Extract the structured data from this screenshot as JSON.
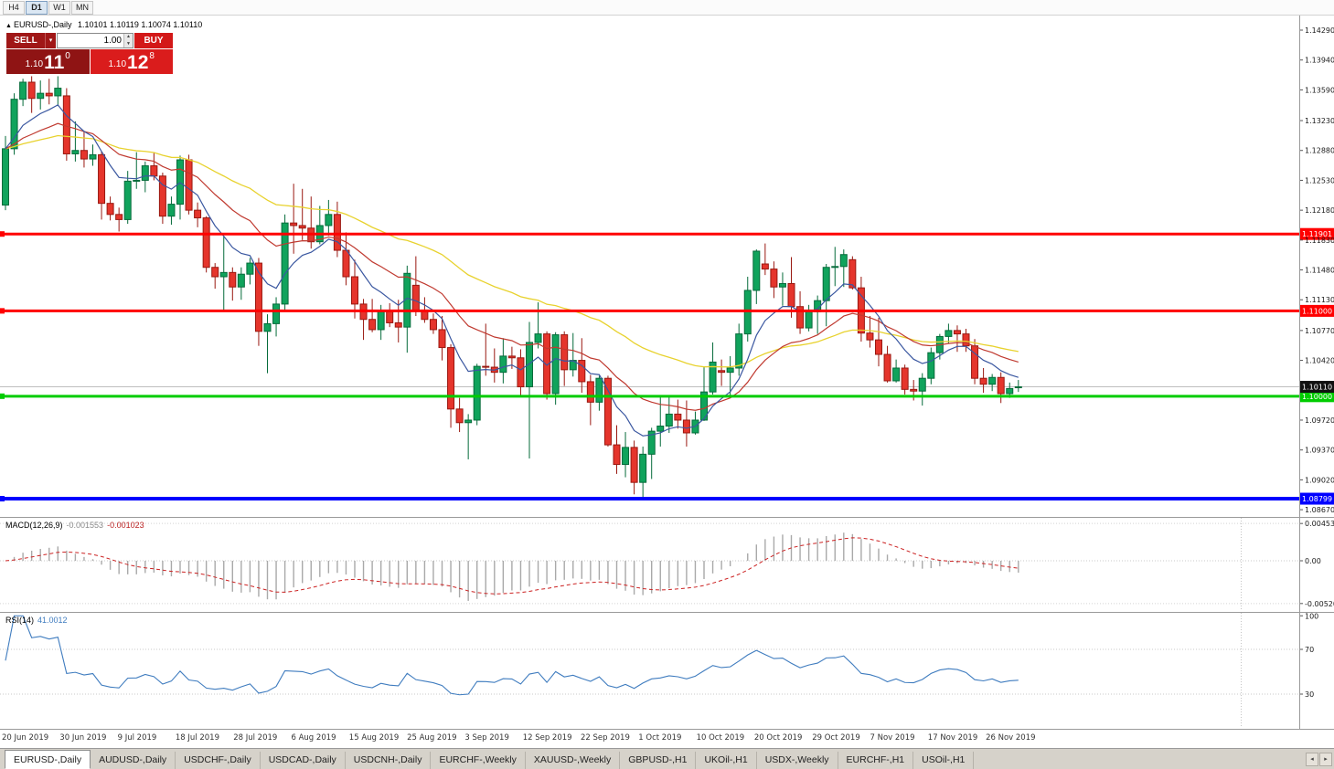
{
  "toolbar": {
    "timeframes": [
      {
        "label": "H4",
        "active": false
      },
      {
        "label": "D1",
        "active": true
      },
      {
        "label": "W1",
        "active": false
      },
      {
        "label": "MN",
        "active": false
      }
    ]
  },
  "chart_header": {
    "symbol": "EURUSD-,Daily",
    "ohlc": "1.10101 1.10119 1.10074 1.10110"
  },
  "trade_panel": {
    "sell_label": "SELL",
    "buy_label": "BUY",
    "volume": "1.00",
    "sell_price": {
      "prefix": "1.10",
      "big": "11",
      "sup": "0",
      "value": "1.10110"
    },
    "buy_price": {
      "prefix": "1.10",
      "big": "12",
      "sup": "8",
      "value": "1.10128"
    }
  },
  "icons": {
    "symbol_marker": "▲",
    "dropdown": "▾",
    "spin_up": "▲",
    "spin_down": "▼",
    "tab_scroll_left": "◂",
    "tab_scroll_right": "▸"
  },
  "price_axis": {
    "labels": [
      "1.14290",
      "1.13940",
      "1.13590",
      "1.13230",
      "1.12880",
      "1.12530",
      "1.12180",
      "1.11830",
      "1.11480",
      "1.11130",
      "1.10770",
      "1.10420",
      "1.09720",
      "1.09370",
      "1.09020",
      "1.08670"
    ]
  },
  "hlines": [
    {
      "price": 1.11901,
      "label": "1.11901",
      "color": "#ff0000",
      "width": 3
    },
    {
      "price": 1.11,
      "label": "1.11000",
      "color": "#ff0000",
      "width": 3
    },
    {
      "price": 1.1,
      "label": "1.10000",
      "color": "#00cc00",
      "width": 3
    },
    {
      "price": 1.08799,
      "label": "1.08799",
      "color": "#0000ff",
      "width": 4
    }
  ],
  "current_price": {
    "value": 1.1011,
    "label": "1.10110"
  },
  "indicators": {
    "macd": {
      "title": "MACD(12,26,9)",
      "value_main": "-0.001553",
      "value_signal": "-0.001023",
      "axis_labels": [
        "0.004536",
        "0.00",
        "-0.005203"
      ]
    },
    "rsi": {
      "title": "RSI(14)",
      "value": "41.0012",
      "axis_labels": [
        "100",
        "70",
        "30"
      ],
      "levels": [
        70,
        30
      ]
    }
  },
  "date_axis": {
    "labels": [
      "20 Jun 2019",
      "30 Jun 2019",
      "9 Jul 2019",
      "18 Jul 2019",
      "28 Jul 2019",
      "6 Aug 2019",
      "15 Aug 2019",
      "25 Aug 2019",
      "3 Sep 2019",
      "12 Sep 2019",
      "22 Sep 2019",
      "1 Oct 2019",
      "10 Oct 2019",
      "20 Oct 2019",
      "29 Oct 2019",
      "7 Nov 2019",
      "17 Nov 2019",
      "26 Nov 2019"
    ]
  },
  "tabs": {
    "items": [
      {
        "label": "EURUSD-,Daily",
        "active": true
      },
      {
        "label": "AUDUSD-,Daily",
        "active": false
      },
      {
        "label": "USDCHF-,Daily",
        "active": false
      },
      {
        "label": "USDCAD-,Daily",
        "active": false
      },
      {
        "label": "USDCNH-,Daily",
        "active": false
      },
      {
        "label": "EURCHF-,Weekly",
        "active": false
      },
      {
        "label": "XAUUSD-,Weekly",
        "active": false
      },
      {
        "label": "GBPUSD-,H1",
        "active": false
      },
      {
        "label": "UKOil-,H1",
        "active": false
      },
      {
        "label": "USDX-,Weekly",
        "active": false
      },
      {
        "label": "EURCHF-,H1",
        "active": false
      },
      {
        "label": "USOil-,H1",
        "active": false
      }
    ]
  },
  "colors": {
    "bull": "#10A35C",
    "bull_border": "#056B3A",
    "bear": "#E5352C",
    "bear_border": "#991810",
    "ma_fast": "#3A57A0",
    "ma_mid": "#C03A30",
    "ma_slow": "#E8D22E",
    "macd_hist": "#A9A9A9",
    "macd_signal": "#CC2222",
    "rsi_line": "#3F7CBF",
    "price_label_bg": "#111111"
  },
  "chart_data": {
    "type": "candlestick",
    "symbol": "EURUSD-",
    "timeframe": "Daily",
    "title": "EURUSD-,Daily",
    "ylim": [
      1.0867,
      1.1429
    ],
    "dates": [
      "2019.06.20",
      "2019.06.21",
      "2019.06.24",
      "2019.06.25",
      "2019.06.26",
      "2019.06.27",
      "2019.06.28",
      "2019.07.01",
      "2019.07.02",
      "2019.07.03",
      "2019.07.04",
      "2019.07.05",
      "2019.07.08",
      "2019.07.09",
      "2019.07.10",
      "2019.07.11",
      "2019.07.12",
      "2019.07.15",
      "2019.07.16",
      "2019.07.17",
      "2019.07.18",
      "2019.07.19",
      "2019.07.22",
      "2019.07.23",
      "2019.07.24",
      "2019.07.25",
      "2019.07.26",
      "2019.07.29",
      "2019.07.30",
      "2019.07.31",
      "2019.08.01",
      "2019.08.02",
      "2019.08.05",
      "2019.08.06",
      "2019.08.07",
      "2019.08.08",
      "2019.08.09",
      "2019.08.12",
      "2019.08.13",
      "2019.08.14",
      "2019.08.15",
      "2019.08.16",
      "2019.08.19",
      "2019.08.20",
      "2019.08.21",
      "2019.08.22",
      "2019.08.23",
      "2019.08.26",
      "2019.08.27",
      "2019.08.28",
      "2019.08.29",
      "2019.08.30",
      "2019.09.02",
      "2019.09.03",
      "2019.09.04",
      "2019.09.05",
      "2019.09.06",
      "2019.09.09",
      "2019.09.10",
      "2019.09.11",
      "2019.09.12",
      "2019.09.13",
      "2019.09.16",
      "2019.09.17",
      "2019.09.18",
      "2019.09.19",
      "2019.09.20",
      "2019.09.23",
      "2019.09.24",
      "2019.09.25",
      "2019.09.26",
      "2019.09.27",
      "2019.09.30",
      "2019.10.01",
      "2019.10.02",
      "2019.10.03",
      "2019.10.04",
      "2019.10.07",
      "2019.10.08",
      "2019.10.09",
      "2019.10.10",
      "2019.10.11",
      "2019.10.14",
      "2019.10.15",
      "2019.10.16",
      "2019.10.17",
      "2019.10.18",
      "2019.10.21",
      "2019.10.22",
      "2019.10.23",
      "2019.10.24",
      "2019.10.25",
      "2019.10.28",
      "2019.10.29",
      "2019.10.30",
      "2019.10.31",
      "2019.11.01",
      "2019.11.04",
      "2019.11.05",
      "2019.11.06",
      "2019.11.07",
      "2019.11.08",
      "2019.11.11",
      "2019.11.12",
      "2019.11.13",
      "2019.11.14",
      "2019.11.15",
      "2019.11.18",
      "2019.11.19",
      "2019.11.20",
      "2019.11.21",
      "2019.11.22",
      "2019.11.25",
      "2019.11.26",
      "2019.11.27",
      "2019.11.28",
      "2019.11.29"
    ],
    "ohlc": [
      [
        1.1224,
        1.1305,
        1.1218,
        1.129
      ],
      [
        1.129,
        1.1355,
        1.1283,
        1.1348
      ],
      [
        1.1348,
        1.1372,
        1.134,
        1.1368
      ],
      [
        1.1368,
        1.1375,
        1.1332,
        1.1349
      ],
      [
        1.1349,
        1.137,
        1.1336,
        1.1355
      ],
      [
        1.1355,
        1.1372,
        1.1342,
        1.1352
      ],
      [
        1.1352,
        1.1375,
        1.134,
        1.1361
      ],
      [
        1.1352,
        1.1361,
        1.1276,
        1.1284
      ],
      [
        1.1284,
        1.1322,
        1.1275,
        1.1288
      ],
      [
        1.1288,
        1.131,
        1.1268,
        1.1278
      ],
      [
        1.1278,
        1.1295,
        1.127,
        1.1283
      ],
      [
        1.1283,
        1.1287,
        1.1207,
        1.1226
      ],
      [
        1.1226,
        1.1234,
        1.1206,
        1.1213
      ],
      [
        1.1213,
        1.1221,
        1.1193,
        1.1207
      ],
      [
        1.1207,
        1.1264,
        1.1202,
        1.1252
      ],
      [
        1.1252,
        1.1286,
        1.1243,
        1.1253
      ],
      [
        1.1253,
        1.1275,
        1.1239,
        1.127
      ],
      [
        1.127,
        1.1285,
        1.1253,
        1.1258
      ],
      [
        1.1258,
        1.1262,
        1.1202,
        1.1211
      ],
      [
        1.1211,
        1.1234,
        1.1201,
        1.1225
      ],
      [
        1.1225,
        1.1282,
        1.1207,
        1.1277
      ],
      [
        1.1277,
        1.1283,
        1.1213,
        1.1218
      ],
      [
        1.1218,
        1.1227,
        1.1198,
        1.1209
      ],
      [
        1.1209,
        1.1211,
        1.1145,
        1.1151
      ],
      [
        1.1151,
        1.1156,
        1.1126,
        1.114
      ],
      [
        1.114,
        1.1187,
        1.1101,
        1.1145
      ],
      [
        1.1145,
        1.1151,
        1.1112,
        1.1128
      ],
      [
        1.1128,
        1.1151,
        1.1113,
        1.1143
      ],
      [
        1.1143,
        1.1162,
        1.1131,
        1.1156
      ],
      [
        1.1156,
        1.1162,
        1.1059,
        1.1076
      ],
      [
        1.1076,
        1.1096,
        1.1027,
        1.1085
      ],
      [
        1.1085,
        1.1116,
        1.107,
        1.1108
      ],
      [
        1.1108,
        1.1213,
        1.1101,
        1.1203
      ],
      [
        1.1203,
        1.1249,
        1.1167,
        1.12
      ],
      [
        1.12,
        1.1243,
        1.1183,
        1.1197
      ],
      [
        1.1197,
        1.1234,
        1.1173,
        1.1181
      ],
      [
        1.1181,
        1.1223,
        1.1178,
        1.12
      ],
      [
        1.12,
        1.123,
        1.1188,
        1.1213
      ],
      [
        1.1213,
        1.1228,
        1.1163,
        1.1171
      ],
      [
        1.1171,
        1.1192,
        1.113,
        1.114
      ],
      [
        1.114,
        1.116,
        1.1091,
        1.1108
      ],
      [
        1.1108,
        1.1114,
        1.1066,
        1.109
      ],
      [
        1.109,
        1.1114,
        1.1075,
        1.1078
      ],
      [
        1.1078,
        1.1107,
        1.1066,
        1.1099
      ],
      [
        1.1099,
        1.1109,
        1.1081,
        1.1086
      ],
      [
        1.1086,
        1.1113,
        1.1063,
        1.1081
      ],
      [
        1.1081,
        1.1153,
        1.1051,
        1.1144
      ],
      [
        1.113,
        1.1164,
        1.1094,
        1.1101
      ],
      [
        1.1101,
        1.1116,
        1.1086,
        1.109
      ],
      [
        1.109,
        1.1097,
        1.1073,
        1.1078
      ],
      [
        1.1078,
        1.1094,
        1.1042,
        1.1057
      ],
      [
        1.1057,
        1.1061,
        1.0963,
        1.0985
      ],
      [
        1.0985,
        1.0998,
        1.0958,
        1.0969
      ],
      [
        1.0969,
        1.0979,
        1.0926,
        1.0972
      ],
      [
        1.0972,
        1.1038,
        1.0966,
        1.1035
      ],
      [
        1.1035,
        1.1085,
        1.1024,
        1.1034
      ],
      [
        1.1034,
        1.1056,
        1.1016,
        1.1028
      ],
      [
        1.1028,
        1.1068,
        1.1015,
        1.1047
      ],
      [
        1.1047,
        1.1058,
        1.1032,
        1.1045
      ],
      [
        1.1045,
        1.1055,
        1.1001,
        1.1011
      ],
      [
        1.1011,
        1.1087,
        1.0927,
        1.1063
      ],
      [
        1.1063,
        1.111,
        1.1056,
        1.1073
      ],
      [
        1.1073,
        1.1076,
        1.0996,
        1.1003
      ],
      [
        1.1003,
        1.1075,
        1.099,
        1.1072
      ],
      [
        1.1072,
        1.1076,
        1.1012,
        1.1031
      ],
      [
        1.1031,
        1.1074,
        1.1023,
        1.1042
      ],
      [
        1.1042,
        1.1068,
        1.1004,
        1.1017
      ],
      [
        1.1017,
        1.1025,
        1.0966,
        1.0993
      ],
      [
        1.0993,
        1.1024,
        1.0983,
        1.1021
      ],
      [
        1.1021,
        1.1024,
        1.0941,
        1.0943
      ],
      [
        1.0943,
        1.0966,
        1.0909,
        1.092
      ],
      [
        1.092,
        1.0958,
        1.0905,
        1.094
      ],
      [
        1.094,
        1.0948,
        1.0885,
        1.0899
      ],
      [
        1.0899,
        1.0941,
        1.0879,
        1.0932
      ],
      [
        1.0932,
        1.0963,
        1.0903,
        1.0959
      ],
      [
        1.0959,
        1.0999,
        1.0941,
        1.0965
      ],
      [
        1.0965,
        1.0999,
        1.0957,
        1.0979
      ],
      [
        1.0979,
        1.0996,
        1.0962,
        1.0972
      ],
      [
        1.0972,
        1.0995,
        1.0941,
        1.0957
      ],
      [
        1.0957,
        1.0982,
        1.0955,
        1.0972
      ],
      [
        1.0972,
        1.1034,
        1.0971,
        1.1005
      ],
      [
        1.1005,
        1.1063,
        1.1002,
        1.104
      ],
      [
        1.103,
        1.1043,
        1.1012,
        1.1028
      ],
      [
        1.1028,
        1.1047,
        1.1001,
        1.1033
      ],
      [
        1.1033,
        1.1085,
        1.1024,
        1.1073
      ],
      [
        1.1073,
        1.114,
        1.1064,
        1.1124
      ],
      [
        1.1124,
        1.1172,
        1.1108,
        1.117
      ],
      [
        1.1155,
        1.1179,
        1.1142,
        1.1149
      ],
      [
        1.1149,
        1.1158,
        1.1115,
        1.1128
      ],
      [
        1.1128,
        1.1145,
        1.1106,
        1.1132
      ],
      [
        1.1132,
        1.1163,
        1.1092,
        1.1105
      ],
      [
        1.1105,
        1.1123,
        1.1073,
        1.108
      ],
      [
        1.108,
        1.1107,
        1.1076,
        1.1099
      ],
      [
        1.1099,
        1.1118,
        1.1073,
        1.1112
      ],
      [
        1.1112,
        1.1155,
        1.1082,
        1.1151
      ],
      [
        1.1151,
        1.1175,
        1.1129,
        1.1152
      ],
      [
        1.1152,
        1.1172,
        1.1128,
        1.1166
      ],
      [
        1.116,
        1.1164,
        1.1125,
        1.1127
      ],
      [
        1.1127,
        1.114,
        1.1064,
        1.1074
      ],
      [
        1.1074,
        1.1094,
        1.1057,
        1.1066
      ],
      [
        1.1066,
        1.1092,
        1.1035,
        1.1049
      ],
      [
        1.1049,
        1.1059,
        1.1016,
        1.1018
      ],
      [
        1.1018,
        1.1043,
        1.1016,
        1.1033
      ],
      [
        1.1033,
        1.1037,
        1.1002,
        1.1008
      ],
      [
        1.1008,
        1.1019,
        1.0995,
        1.1006
      ],
      [
        1.1006,
        1.1027,
        1.0989,
        1.1021
      ],
      [
        1.1021,
        1.1057,
        1.1014,
        1.1051
      ],
      [
        1.1051,
        1.1073,
        1.1043,
        1.107
      ],
      [
        1.107,
        1.1085,
        1.1062,
        1.1077
      ],
      [
        1.1077,
        1.1083,
        1.1052,
        1.1073
      ],
      [
        1.1073,
        1.1079,
        1.1052,
        1.1059
      ],
      [
        1.1059,
        1.1067,
        1.1014,
        1.1021
      ],
      [
        1.1021,
        1.1033,
        1.1004,
        1.1014
      ],
      [
        1.1014,
        1.1026,
        1.1006,
        1.1022
      ],
      [
        1.1022,
        1.1028,
        1.0992,
        1.1003
      ],
      [
        1.1003,
        1.1016,
        1.0998,
        1.1009
      ],
      [
        1.101,
        1.1019,
        1.1005,
        1.1011
      ]
    ]
  }
}
